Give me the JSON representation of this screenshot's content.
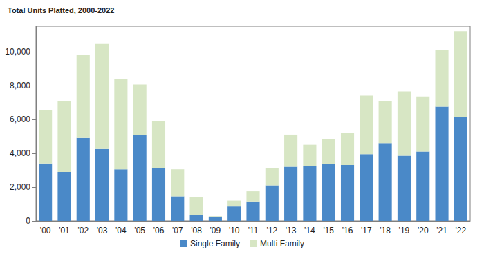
{
  "chart_data": {
    "type": "bar",
    "title": "Total Units Platted, 2000-2022",
    "categories": [
      "'00",
      "'01",
      "'02",
      "'03",
      "'04",
      "'05",
      "'06",
      "'07",
      "'08",
      "'09",
      "'10",
      "'11",
      "'12",
      "'13",
      "'14",
      "'15",
      "'16",
      "'17",
      "'18",
      "'19",
      "'20",
      "'21",
      "'22"
    ],
    "series": [
      {
        "name": "Single Family",
        "color": "#4a89c8",
        "values": [
          3400,
          2900,
          4900,
          4250,
          3050,
          5100,
          3100,
          1450,
          350,
          250,
          850,
          1150,
          2100,
          3200,
          3250,
          3350,
          3300,
          3950,
          4600,
          3850,
          4100,
          6750,
          6150
        ]
      },
      {
        "name": "Multi Family",
        "color": "#d7e6c4",
        "values": [
          3150,
          4150,
          4900,
          6200,
          5350,
          2950,
          2800,
          1600,
          1050,
          30,
          350,
          600,
          1000,
          1900,
          1250,
          1500,
          1900,
          3450,
          2450,
          3800,
          3250,
          3350,
          5050
        ]
      }
    ],
    "stacked": true,
    "ylim": [
      0,
      11500
    ],
    "yticks": [
      0,
      {
        "value": 2000,
        "label": "2,000"
      },
      {
        "value": 4000,
        "label": "4,000"
      },
      {
        "value": 6000,
        "label": "6,000"
      },
      {
        "value": 8000,
        "label": "8,000"
      },
      {
        "value": 10000,
        "label": "10,000"
      }
    ],
    "grid": false,
    "legend": "bottom"
  }
}
